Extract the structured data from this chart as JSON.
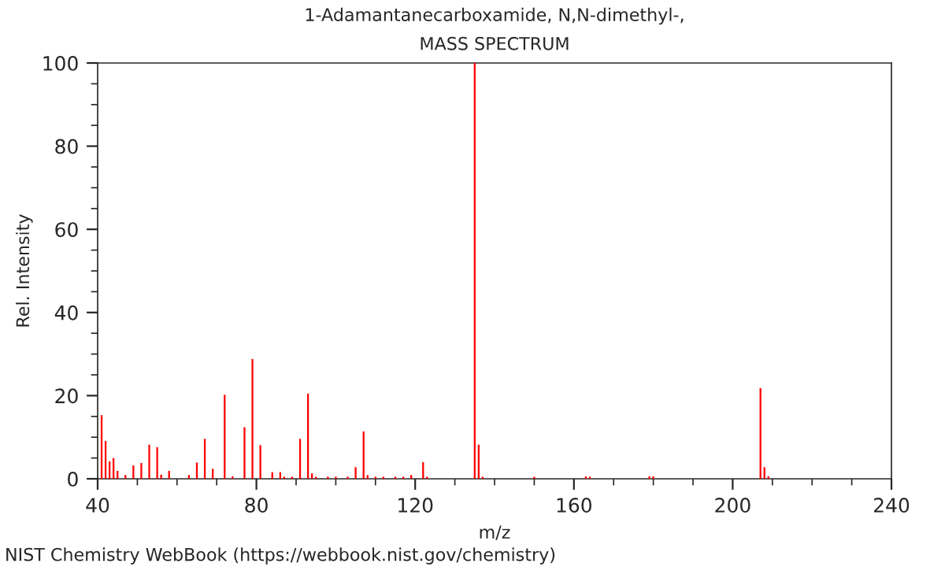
{
  "chart_data": {
    "type": "bar",
    "title": "1-Adamantanecarboxamide, N,N-dimethyl-,\nMASS SPECTRUM",
    "xlabel": "m/z",
    "ylabel": "Rel. Intensity",
    "annotations": [
      "NIST Chemistry WebBook (https://webbook.nist.gov/chemistry)"
    ],
    "x": [
      41,
      42,
      43,
      44,
      45,
      47,
      49,
      51,
      53,
      55,
      56,
      58,
      63,
      65,
      67,
      69,
      72,
      74,
      77,
      79,
      81,
      84,
      86,
      87,
      89,
      91,
      93,
      94,
      95,
      98,
      100,
      103,
      105,
      107,
      108,
      110,
      112,
      115,
      117,
      119,
      122,
      123,
      135,
      136,
      137,
      150,
      163,
      164,
      179,
      180,
      207,
      208,
      209
    ],
    "values": [
      15.3,
      9.1,
      4.2,
      5,
      1.9,
      0.9,
      3.2,
      3.8,
      8.2,
      7.6,
      1,
      1.9,
      0.9,
      3.9,
      9.6,
      2.4,
      20.2,
      0.6,
      12.4,
      28.8,
      8.1,
      1.6,
      1.6,
      0.5,
      0.5,
      9.6,
      20.5,
      1.3,
      0.5,
      0.5,
      0.5,
      0.5,
      2.8,
      11.4,
      0.9,
      0.5,
      0.5,
      0.5,
      0.5,
      0.9,
      4,
      0.5,
      100,
      8.2,
      0.5,
      0.5,
      0.6,
      0.5,
      0.6,
      0.6,
      21.8,
      2.8,
      0.6
    ],
    "color": "#ff0000",
    "xlim": [
      40,
      240
    ],
    "xticks": [
      40,
      80,
      120,
      160,
      200,
      240
    ],
    "ylim": [
      0,
      100
    ],
    "yticks": [
      0,
      20,
      40,
      60,
      80,
      100
    ],
    "grid": false,
    "legend": false
  }
}
